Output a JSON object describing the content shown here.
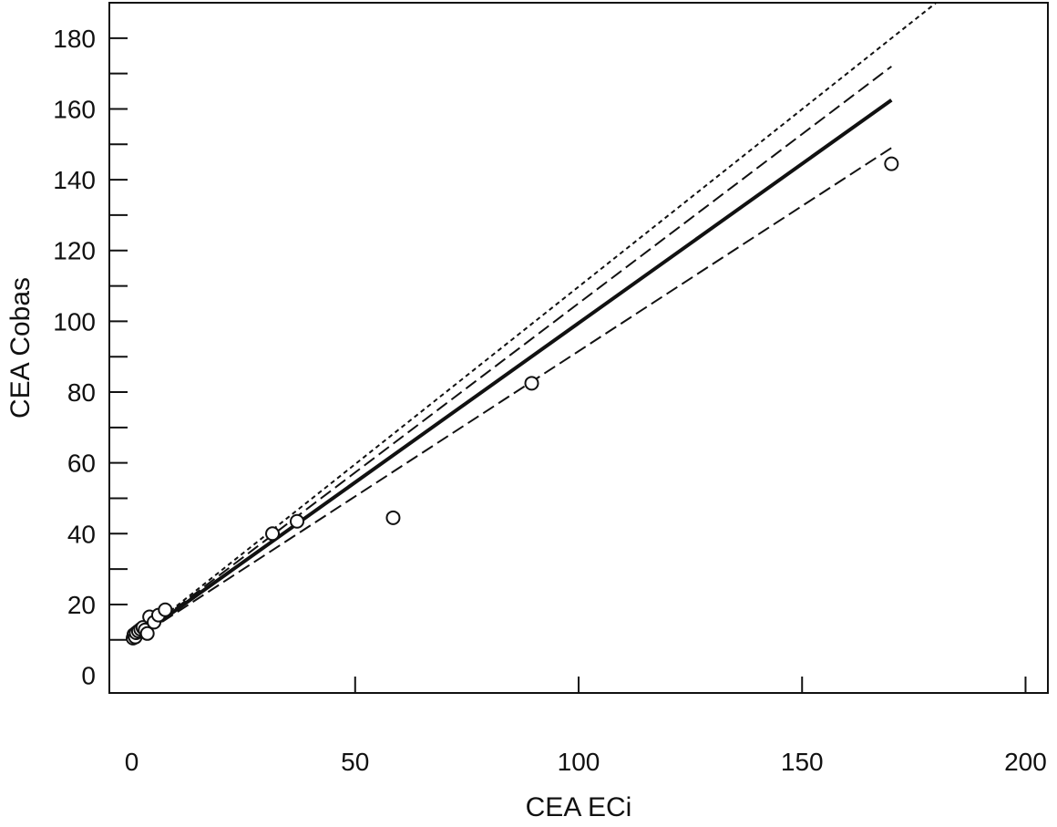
{
  "chart_data": {
    "type": "scatter",
    "title": "",
    "xlabel": "CEA ECi",
    "ylabel": "CEA Cobas",
    "xlim": [
      -5,
      205
    ],
    "ylim": [
      -5,
      190
    ],
    "grid": false,
    "x_ticks": [
      0,
      50,
      100,
      150,
      200
    ],
    "y_ticks": [
      0,
      20,
      40,
      60,
      80,
      100,
      120,
      140,
      160,
      180
    ],
    "x_minor_ticks": [
      50,
      100,
      150,
      200
    ],
    "y_minor_ticks": [
      10,
      30,
      50,
      70,
      90,
      110,
      130,
      150,
      170
    ],
    "points": [
      {
        "x": 0.3,
        "y": 10.5
      },
      {
        "x": 0.5,
        "y": 11.5
      },
      {
        "x": 0.8,
        "y": 10.8
      },
      {
        "x": 1.0,
        "y": 12.0
      },
      {
        "x": 1.5,
        "y": 12.5
      },
      {
        "x": 2.0,
        "y": 13.0
      },
      {
        "x": 2.5,
        "y": 13.5
      },
      {
        "x": 3.0,
        "y": 12.8
      },
      {
        "x": 3.5,
        "y": 11.8
      },
      {
        "x": 4.0,
        "y": 16.5
      },
      {
        "x": 5.0,
        "y": 15.0
      },
      {
        "x": 6.0,
        "y": 17.0
      },
      {
        "x": 7.5,
        "y": 18.5
      },
      {
        "x": 31.5,
        "y": 40.0
      },
      {
        "x": 37.0,
        "y": 43.5
      },
      {
        "x": 58.5,
        "y": 44.5
      },
      {
        "x": 89.5,
        "y": 82.5
      },
      {
        "x": 170.0,
        "y": 144.5
      }
    ],
    "lines": [
      {
        "style": "solid",
        "x": [
          0,
          170
        ],
        "y": [
          9.5,
          162.5
        ]
      },
      {
        "style": "dashed-upper",
        "x": [
          0,
          170
        ],
        "y": [
          9.5,
          172.0
        ]
      },
      {
        "style": "dashed-lower",
        "x": [
          0,
          170
        ],
        "y": [
          9.5,
          149.0
        ]
      },
      {
        "style": "dotted",
        "x": [
          0,
          180
        ],
        "y": [
          9.5,
          190.0
        ]
      }
    ]
  }
}
